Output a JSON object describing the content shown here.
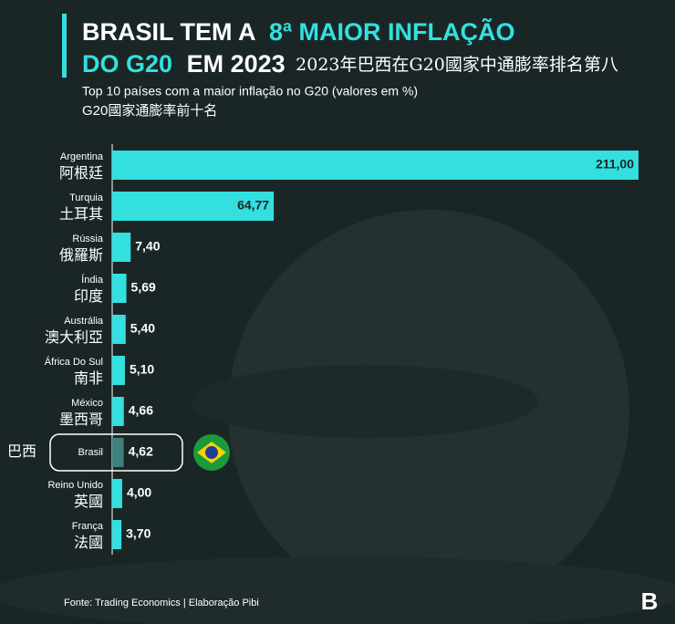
{
  "chart_data": {
    "type": "hbar",
    "title": [
      "BRASIL TEM A",
      "8ª MAIOR INFLAÇÃO",
      "DO G20",
      "EM 2023"
    ],
    "title_zh": "2023年巴西在G20國家中通膨率排名第八",
    "subtitle": "Top 10 países com a maior inflação no G20 (valores em %)",
    "subtitle_zh": "G20國家通膨率前十名",
    "categories": [
      "Argentina",
      "Turquia",
      "Rússia",
      "Índia",
      "Austrália",
      "África Do Sul",
      "México",
      "Brasil",
      "Reino Unido",
      "França"
    ],
    "categories_zh": [
      "阿根廷",
      "土耳其",
      "俄羅斯",
      "印度",
      "澳大利亞",
      "南非",
      "墨西哥",
      "巴西",
      "英國",
      "法國"
    ],
    "values": [
      211.0,
      64.77,
      7.4,
      5.69,
      5.4,
      5.1,
      4.66,
      4.62,
      4.0,
      3.7
    ],
    "value_labels": [
      "211,00",
      "64,77",
      "7,40",
      "5,69",
      "5,40",
      "5,10",
      "4,66",
      "4,62",
      "4,00",
      "3,70"
    ],
    "color": "#33e0df",
    "highlight": 7,
    "highlight_color": "#3f7f7e",
    "source": "Fonte: Trading Economics | Elaboração Pibi"
  }
}
